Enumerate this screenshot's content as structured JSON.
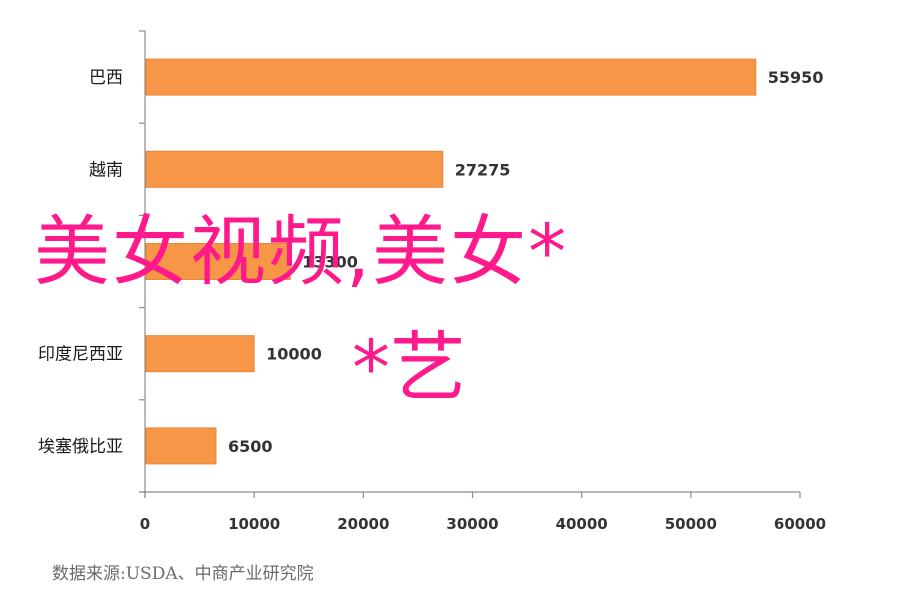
{
  "chart_data": {
    "type": "bar",
    "orientation": "horizontal",
    "categories": [
      "巴西",
      "越南",
      "",
      "印度尼西亚",
      "埃塞俄比亚"
    ],
    "values": [
      55950,
      27275,
      13300,
      10000,
      6500
    ],
    "data_labels": [
      "55950",
      "27275",
      "13300",
      "10000",
      "6500"
    ],
    "xlim": [
      0,
      60000
    ],
    "x_ticks": [
      "0",
      "10000",
      "20000",
      "30000",
      "40000",
      "50000",
      "60000"
    ],
    "grid": false,
    "legend": "none",
    "bar_color": "#f79646",
    "bar_border_color": "#e8873a"
  },
  "source_note": "数据来源:USDA、中商产业研究院",
  "watermark": {
    "line1": "美女视频,美女*",
    "line2": "*艺",
    "color": "#ff1a8c"
  }
}
